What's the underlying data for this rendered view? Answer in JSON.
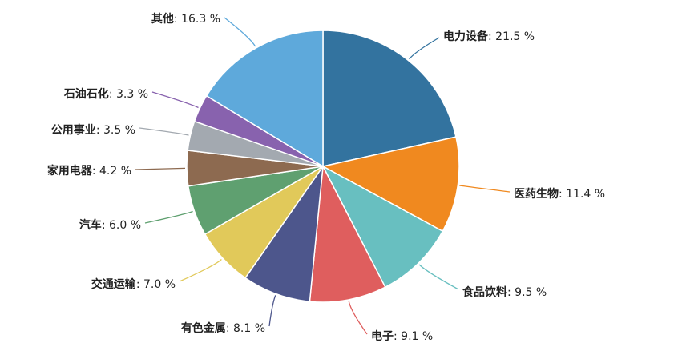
{
  "chart_data": {
    "type": "pie",
    "title": "",
    "unit": "%",
    "slices": [
      {
        "label": "电力设备",
        "value": 21.5,
        "display": "21.5 %",
        "color": "#33739f"
      },
      {
        "label": "医药生物",
        "value": 11.4,
        "display": "11.4 %",
        "color": "#f0891f"
      },
      {
        "label": "食品饮料",
        "value": 9.5,
        "display": "9.5 %",
        "color": "#68bfc0"
      },
      {
        "label": "电子",
        "value": 9.1,
        "display": "9.1 %",
        "color": "#df5e5e"
      },
      {
        "label": "有色金属",
        "value": 8.1,
        "display": "8.1 %",
        "color": "#4d568c"
      },
      {
        "label": "交通运输",
        "value": 7.0,
        "display": "7.0 %",
        "color": "#e1c95a"
      },
      {
        "label": "汽车",
        "value": 6.0,
        "display": "6.0 %",
        "color": "#5fa070"
      },
      {
        "label": "家用电器",
        "value": 4.2,
        "display": "4.2 %",
        "color": "#8d6a50"
      },
      {
        "label": "公用事业",
        "value": 3.5,
        "display": "3.5 %",
        "color": "#a3a9b0"
      },
      {
        "label": "石油石化",
        "value": 3.3,
        "display": "3.3 %",
        "color": "#8862ae"
      },
      {
        "label": "其他",
        "value": 16.3,
        "display": "16.3 %",
        "color": "#5ea9db"
      }
    ]
  }
}
